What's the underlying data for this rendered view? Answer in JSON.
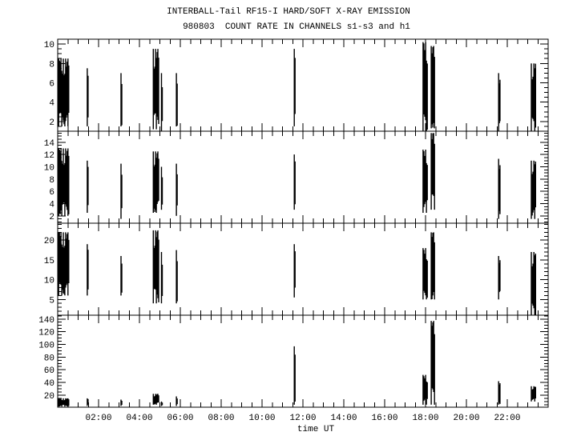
{
  "chart_data": {
    "type": "bar",
    "title": "INTERBALL-Tail RF15-I HARD/SOFT X-RAY EMISSION",
    "subtitle": "980803  COUNT RATE IN CHANNELS s1-s3 and h1",
    "xlabel": "time UT",
    "xlim": [
      0,
      24
    ],
    "x_tick_labels": [
      "02:00",
      "04:00",
      "06:00",
      "08:00",
      "10:00",
      "12:00",
      "14:00",
      "16:00",
      "18:00",
      "20:00",
      "22:00"
    ],
    "x_tick_hours": [
      2,
      4,
      6,
      8,
      10,
      12,
      14,
      16,
      18,
      20,
      22
    ],
    "grid": false,
    "color": "#000000",
    "panels": [
      {
        "channel": "s1",
        "ylim": [
          1,
          10.5
        ],
        "yticks": [
          2,
          4,
          6,
          8,
          10
        ],
        "bursts": [
          {
            "t": [
              0.02,
              0.55
            ],
            "range": [
              1.5,
              8.5
            ]
          },
          {
            "t": [
              1.42,
              1.5
            ],
            "range": [
              1.5,
              7.5
            ]
          },
          {
            "t": [
              3.07,
              3.15
            ],
            "range": [
              1.5,
              7.0
            ]
          },
          {
            "t": [
              4.65,
              4.95
            ],
            "range": [
              1.2,
              9.5
            ]
          },
          {
            "t": [
              5.05,
              5.12
            ],
            "range": [
              1.0,
              7.0
            ]
          },
          {
            "t": [
              5.78,
              5.85
            ],
            "range": [
              1.5,
              7.0
            ]
          },
          {
            "t": [
              11.55,
              11.6
            ],
            "range": [
              1.5,
              9.5
            ]
          },
          {
            "t": [
              17.85,
              18.1
            ],
            "range": [
              1.0,
              10.2
            ]
          },
          {
            "t": [
              18.25,
              18.45
            ],
            "range": [
              1.3,
              9.8
            ]
          },
          {
            "t": [
              21.55,
              21.65
            ],
            "range": [
              1.0,
              7.0
            ]
          },
          {
            "t": [
              23.15,
              23.4
            ],
            "range": [
              1.0,
              8.0
            ]
          }
        ]
      },
      {
        "channel": "s2",
        "ylim": [
          0.8,
          15.8
        ],
        "yticks": [
          2,
          4,
          6,
          8,
          10,
          12,
          14
        ],
        "bursts": [
          {
            "t": [
              0.02,
              0.55
            ],
            "range": [
              2.0,
              13.0
            ]
          },
          {
            "t": [
              1.42,
              1.5
            ],
            "range": [
              2.5,
              11.0
            ]
          },
          {
            "t": [
              3.07,
              3.15
            ],
            "range": [
              1.5,
              10.5
            ]
          },
          {
            "t": [
              4.65,
              4.95
            ],
            "range": [
              2.5,
              12.5
            ]
          },
          {
            "t": [
              5.05,
              5.12
            ],
            "range": [
              3.0,
              10.0
            ]
          },
          {
            "t": [
              5.78,
              5.85
            ],
            "range": [
              2.0,
              10.5
            ]
          },
          {
            "t": [
              11.55,
              11.6
            ],
            "range": [
              3.0,
              12.0
            ]
          },
          {
            "t": [
              17.85,
              18.1
            ],
            "range": [
              2.5,
              12.8
            ]
          },
          {
            "t": [
              18.25,
              18.45
            ],
            "range": [
              3.0,
              15.5
            ]
          },
          {
            "t": [
              21.55,
              21.65
            ],
            "range": [
              1.5,
              11.3
            ]
          },
          {
            "t": [
              23.15,
              23.4
            ],
            "range": [
              1.5,
              11.0
            ]
          }
        ]
      },
      {
        "channel": "s3",
        "ylim": [
          1,
          24.3
        ],
        "yticks": [
          5,
          10,
          15,
          20
        ],
        "bursts": [
          {
            "t": [
              0.02,
              0.55
            ],
            "range": [
              6.0,
              22.0
            ]
          },
          {
            "t": [
              1.42,
              1.5
            ],
            "range": [
              6.0,
              19.0
            ]
          },
          {
            "t": [
              3.07,
              3.15
            ],
            "range": [
              6.0,
              16.0
            ]
          },
          {
            "t": [
              4.65,
              4.95
            ],
            "range": [
              4.0,
              22.5
            ]
          },
          {
            "t": [
              5.05,
              5.12
            ],
            "range": [
              4.0,
              17.0
            ]
          },
          {
            "t": [
              5.78,
              5.85
            ],
            "range": [
              4.0,
              17.5
            ]
          },
          {
            "t": [
              11.55,
              11.6
            ],
            "range": [
              5.5,
              19.0
            ]
          },
          {
            "t": [
              17.85,
              18.1
            ],
            "range": [
              5.0,
              18.0
            ]
          },
          {
            "t": [
              18.25,
              18.45
            ],
            "range": [
              5.0,
              22.0
            ]
          },
          {
            "t": [
              21.55,
              21.65
            ],
            "range": [
              5.0,
              16.0
            ]
          },
          {
            "t": [
              23.15,
              23.4
            ],
            "range": [
              1.0,
              17.0
            ]
          }
        ]
      },
      {
        "channel": "h1",
        "ylim": [
          1,
          146
        ],
        "yticks": [
          20,
          40,
          60,
          80,
          100,
          120,
          140
        ],
        "bursts": [
          {
            "t": [
              0.02,
              0.55
            ],
            "range": [
              2,
              15
            ]
          },
          {
            "t": [
              1.42,
              1.5
            ],
            "range": [
              3,
              15
            ]
          },
          {
            "t": [
              3.07,
              3.15
            ],
            "range": [
              3,
              13
            ]
          },
          {
            "t": [
              4.65,
              4.95
            ],
            "range": [
              5,
              22
            ]
          },
          {
            "t": [
              5.05,
              5.12
            ],
            "range": [
              3,
              10
            ]
          },
          {
            "t": [
              5.78,
              5.85
            ],
            "range": [
              3,
              18
            ]
          },
          {
            "t": [
              11.55,
              11.6
            ],
            "range": [
              5,
              97
            ]
          },
          {
            "t": [
              17.85,
              18.1
            ],
            "range": [
              5,
              52
            ]
          },
          {
            "t": [
              18.25,
              18.45
            ],
            "range": [
              5,
              137
            ]
          },
          {
            "t": [
              21.55,
              21.65
            ],
            "range": [
              5,
              42
            ]
          },
          {
            "t": [
              23.15,
              23.4
            ],
            "range": [
              10,
              34
            ]
          }
        ]
      }
    ]
  }
}
